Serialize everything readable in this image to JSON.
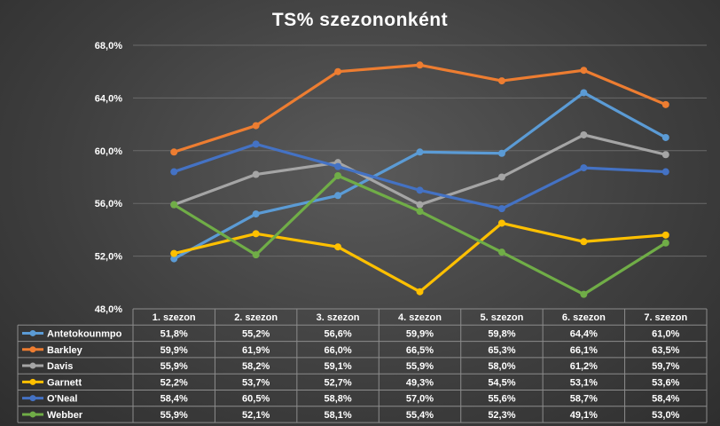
{
  "chart_data": {
    "type": "line",
    "title": "TS% szezononként",
    "categories": [
      "1. szezon",
      "2. szezon",
      "3. szezon",
      "4. szezon",
      "5. szezon",
      "6. szezon",
      "7. szezon"
    ],
    "ylim": [
      48.0,
      68.0
    ],
    "yticks": [
      48.0,
      52.0,
      56.0,
      60.0,
      64.0,
      68.0
    ],
    "ytick_labels": [
      "48,0%",
      "52,0%",
      "56,0%",
      "60,0%",
      "64,0%",
      "68,0%"
    ],
    "grid": true,
    "legend": "table",
    "series": [
      {
        "name": "Antetokounmpo",
        "color": "#5b9bd5",
        "values": [
          51.8,
          55.2,
          56.6,
          59.9,
          59.8,
          64.4,
          61.0
        ],
        "labels": [
          "51,8%",
          "55,2%",
          "56,6%",
          "59,9%",
          "59,8%",
          "64,4%",
          "61,0%"
        ]
      },
      {
        "name": "Barkley",
        "color": "#ed7d31",
        "values": [
          59.9,
          61.9,
          66.0,
          66.5,
          65.3,
          66.1,
          63.5
        ],
        "labels": [
          "59,9%",
          "61,9%",
          "66,0%",
          "66,5%",
          "65,3%",
          "66,1%",
          "63,5%"
        ]
      },
      {
        "name": "Davis",
        "color": "#a5a5a5",
        "values": [
          55.9,
          58.2,
          59.1,
          55.9,
          58.0,
          61.2,
          59.7
        ],
        "labels": [
          "55,9%",
          "58,2%",
          "59,1%",
          "55,9%",
          "58,0%",
          "61,2%",
          "59,7%"
        ]
      },
      {
        "name": "Garnett",
        "color": "#ffc000",
        "values": [
          52.2,
          53.7,
          52.7,
          49.3,
          54.5,
          53.1,
          53.6
        ],
        "labels": [
          "52,2%",
          "53,7%",
          "52,7%",
          "49,3%",
          "54,5%",
          "53,1%",
          "53,6%"
        ]
      },
      {
        "name": "O'Neal",
        "color": "#4472c4",
        "values": [
          58.4,
          60.5,
          58.8,
          57.0,
          55.6,
          58.7,
          58.4
        ],
        "labels": [
          "58,4%",
          "60,5%",
          "58,8%",
          "57,0%",
          "55,6%",
          "58,7%",
          "58,4%"
        ]
      },
      {
        "name": "Webber",
        "color": "#70ad47",
        "values": [
          55.9,
          52.1,
          58.1,
          55.4,
          52.3,
          49.1,
          53.0
        ],
        "labels": [
          "55,9%",
          "52,1%",
          "58,1%",
          "55,4%",
          "52,3%",
          "49,1%",
          "53,0%"
        ]
      }
    ]
  }
}
